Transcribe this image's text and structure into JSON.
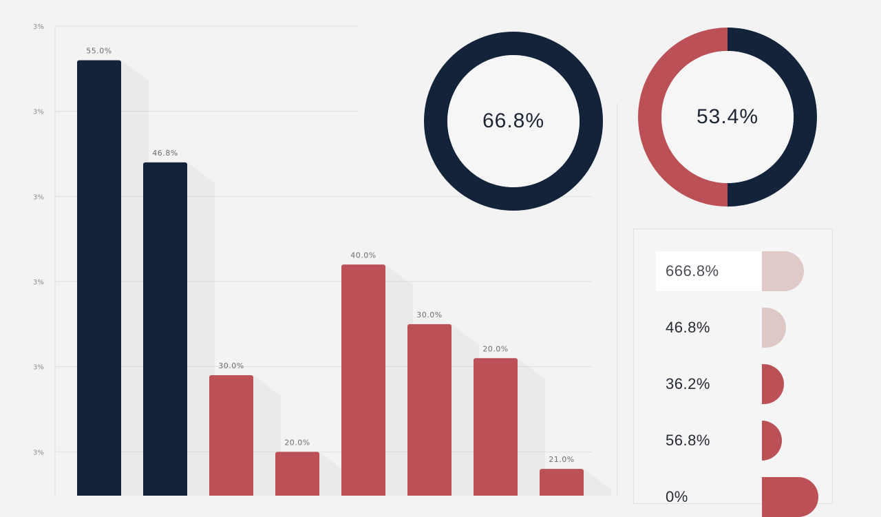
{
  "chart_data": [
    {
      "type": "bar",
      "title": "",
      "xlabel": "",
      "ylabel": "",
      "ylim": [
        0,
        6
      ],
      "yticks": [
        "3%",
        "3%",
        "3%",
        "3%",
        "3%",
        "3%"
      ],
      "categories": [
        "",
        "",
        "",
        "",
        "",
        "",
        "",
        ""
      ],
      "values": [
        5.6,
        4.4,
        1.9,
        1.0,
        3.2,
        2.5,
        2.1,
        0.8
      ],
      "bar_labels": [
        "55.0%",
        "46.8%",
        "30.0%",
        "20.0%",
        "40.0%",
        "30.0%",
        "20.0%",
        "21.0%"
      ],
      "bar_colors": [
        "#13233a",
        "#13233a",
        "#bb5156",
        "#bb5156",
        "#bb5156",
        "#bb5156",
        "#bb5156",
        "#bb5156"
      ],
      "grid": true,
      "legend": "none"
    },
    {
      "type": "pie",
      "variant": "donut",
      "center_label": "66.8%",
      "values": [
        100
      ],
      "colors": [
        "#13233a"
      ]
    },
    {
      "type": "pie",
      "variant": "donut",
      "center_label": "53.4%",
      "values": [
        50,
        50
      ],
      "colors": [
        "#13233a",
        "#bb5156"
      ]
    },
    {
      "type": "table",
      "rows": [
        {
          "label": "666.8%",
          "value": 0.61,
          "color": "#dfcac8",
          "highlight": true
        },
        {
          "label": "46.8%",
          "value": 0.35,
          "color": "#ddc8c6",
          "highlight": false
        },
        {
          "label": "36.2%",
          "value": 0.32,
          "color": "#bb5156",
          "highlight": false
        },
        {
          "label": "56.8%",
          "value": 0.29,
          "color": "#bb5156",
          "highlight": false
        },
        {
          "label": "0%",
          "value": 0.82,
          "color": "#bb5156",
          "highlight": false
        }
      ]
    }
  ]
}
